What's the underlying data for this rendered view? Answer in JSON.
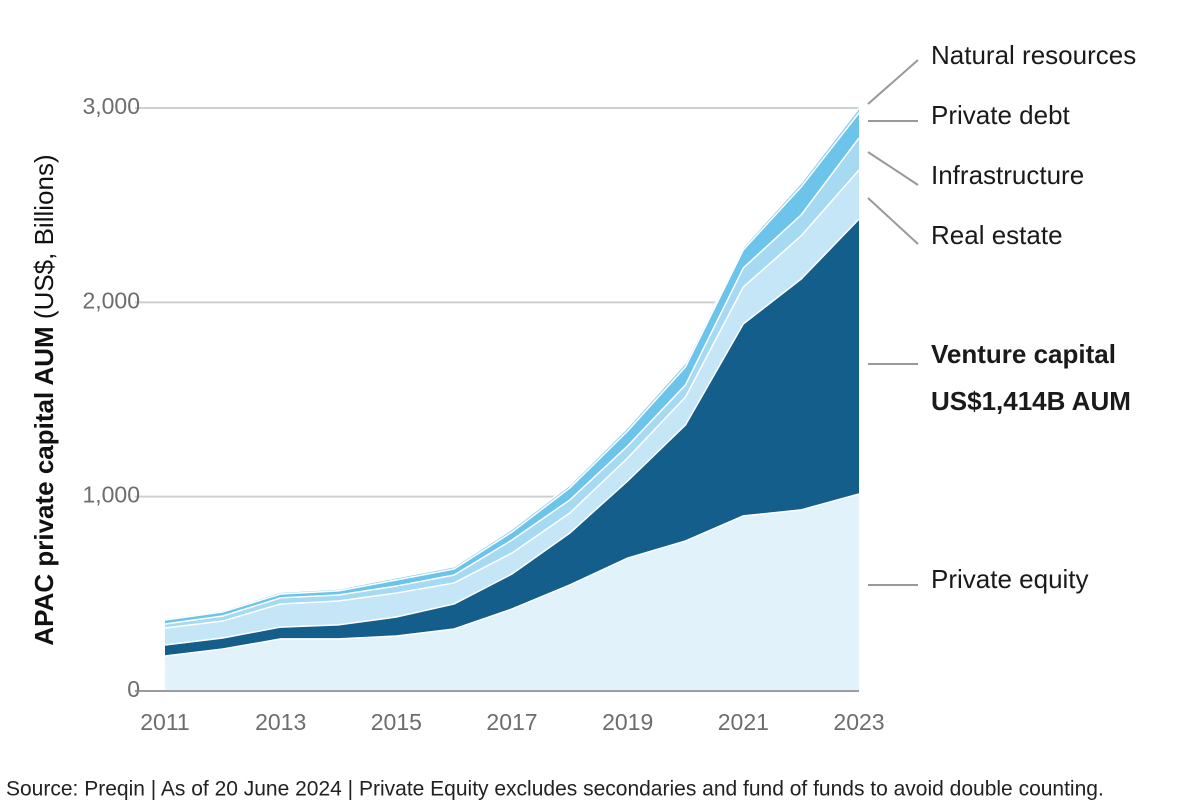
{
  "chart_data": {
    "type": "stacked-area",
    "y_label": "APAC private capital AUM",
    "y_label_unit": "(US$, Billions)",
    "x": [
      2011,
      2012,
      2013,
      2014,
      2015,
      2016,
      2017,
      2018,
      2019,
      2020,
      2021,
      2022,
      2023
    ],
    "xlim": [
      2011,
      2023
    ],
    "xticks": [
      2011,
      2013,
      2015,
      2017,
      2019,
      2021,
      2023
    ],
    "ylim": [
      0,
      3000
    ],
    "yticks": [
      0,
      {
        "value": 1000,
        "label": "1,000"
      },
      {
        "value": 2000,
        "label": "2,000"
      },
      {
        "value": 3000,
        "label": "3,000"
      }
    ],
    "grid": true,
    "series": [
      {
        "name": "Private equity",
        "color": "#e1f2fa",
        "values": [
          180,
          216,
          268,
          268,
          283,
          319,
          422,
          546,
          684,
          772,
          901,
          932,
          1014
        ]
      },
      {
        "name": "Venture capital",
        "color": "#145e8c",
        "values": [
          57,
          57,
          61,
          72,
          98,
          129,
          180,
          267,
          397,
          597,
          988,
          1188,
          1414
        ]
      },
      {
        "name": "Real estate",
        "color": "#c5e6f6",
        "values": [
          87,
          87,
          119,
          123,
          123,
          108,
          108,
          103,
          118,
          144,
          190,
          222,
          253
        ]
      },
      {
        "name": "Infrastructure",
        "color": "#a6daf2",
        "values": [
          21,
          26,
          31,
          31,
          36,
          41,
          67,
          67,
          62,
          62,
          98,
          108,
          165
        ]
      },
      {
        "name": "Private debt",
        "color": "#6cc4ea",
        "values": [
          20,
          21,
          20,
          21,
          31,
          31,
          41,
          62,
          77,
          93,
          93,
          144,
          129
        ]
      },
      {
        "name": "Natural resources",
        "color": "#8fcfee",
        "values": [
          8,
          8,
          10,
          10,
          12,
          12,
          15,
          15,
          18,
          20,
          15,
          20,
          25
        ]
      }
    ],
    "annotation": "US$1,414B AUM",
    "source": "Source: Preqin | As of 20 June 2024 | Private Equity excludes secondaries and fund of funds to avoid double counting."
  }
}
